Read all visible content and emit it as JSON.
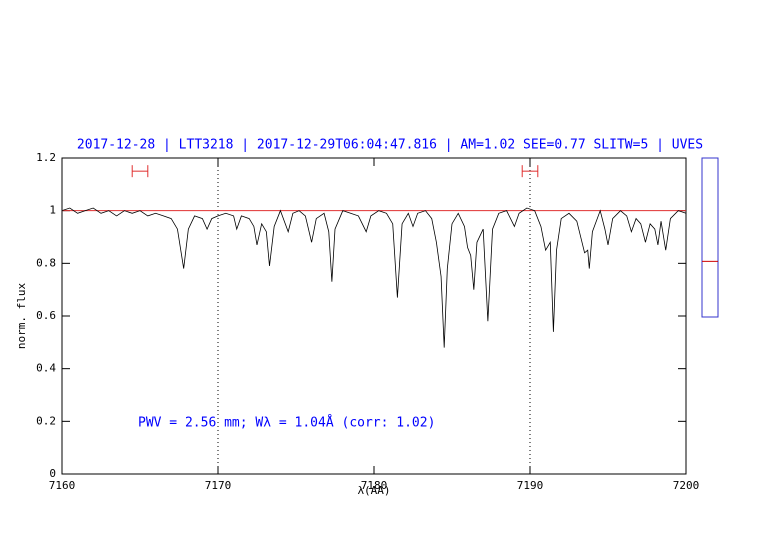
{
  "chart_data": {
    "type": "line",
    "title": "2017-12-28 | LTT3218 | 2017-12-29T06:04:47.816 | AM=1.02 SEE=0.77 SLITW=5 | UVES",
    "xlabel": "λ(AA)",
    "ylabel": "norm. flux",
    "annotation": "PWV = 2.56 mm; Wλ = 1.04Å (corr: 1.02)",
    "xlim": [
      7160,
      7200
    ],
    "ylim": [
      0,
      1.2
    ],
    "xticks": [
      7160,
      7170,
      7180,
      7190,
      7200
    ],
    "yticks": [
      0,
      0.2,
      0.4,
      0.6,
      0.8,
      1,
      1.2
    ],
    "vlines": [
      7170,
      7190
    ],
    "hline": 1,
    "hline_color": "#e03030",
    "intervals": [
      [
        7164.5,
        7165.5
      ],
      [
        7189.5,
        7190.5
      ]
    ],
    "interval_y": 1.15,
    "interval_color": "#e03030",
    "side_panel": {
      "ylim": [
        0.6,
        1.2
      ],
      "marker": 0.81,
      "color": "#3333cc",
      "marker_color": "#cc0000"
    },
    "series": [
      {
        "color": "#000000",
        "x": [
          7160,
          7160.5,
          7161,
          7161.5,
          7162,
          7162.5,
          7163,
          7163.5,
          7164,
          7164.5,
          7165,
          7165.5,
          7166,
          7166.5,
          7167,
          7167.4,
          7167.8,
          7168.1,
          7168.5,
          7169,
          7169.3,
          7169.6,
          7170,
          7170.5,
          7171,
          7171.2,
          7171.5,
          7172,
          7172.3,
          7172.5,
          7172.8,
          7173.1,
          7173.3,
          7173.6,
          7174,
          7174.5,
          7174.8,
          7175.2,
          7175.6,
          7176,
          7176.3,
          7176.8,
          7177.1,
          7177.3,
          7177.5,
          7178,
          7178.5,
          7179,
          7179.5,
          7179.8,
          7180.3,
          7180.8,
          7181.2,
          7181.5,
          7181.8,
          7182.2,
          7182.5,
          7182.8,
          7183.3,
          7183.7,
          7184,
          7184.3,
          7184.5,
          7184.7,
          7185,
          7185.4,
          7185.8,
          7186,
          7186.2,
          7186.4,
          7186.6,
          7187,
          7187.3,
          7187.6,
          7188,
          7188.5,
          7189,
          7189.3,
          7189.8,
          7190.3,
          7190.7,
          7191,
          7191.3,
          7191.5,
          7191.7,
          7192,
          7192.5,
          7193,
          7193.5,
          7193.7,
          7193.8,
          7194,
          7194.5,
          7194.8,
          7195,
          7195.3,
          7195.8,
          7196.2,
          7196.5,
          7196.8,
          7197.1,
          7197.4,
          7197.7,
          7198,
          7198.2,
          7198.4,
          7198.7,
          7199,
          7199.5,
          7200
        ],
        "values": [
          1.0,
          1.01,
          0.99,
          1.0,
          1.01,
          0.99,
          1.0,
          0.98,
          1.0,
          0.99,
          1.0,
          0.98,
          0.99,
          0.98,
          0.97,
          0.93,
          0.78,
          0.93,
          0.98,
          0.97,
          0.93,
          0.97,
          0.98,
          0.99,
          0.98,
          0.93,
          0.98,
          0.97,
          0.94,
          0.87,
          0.95,
          0.92,
          0.79,
          0.94,
          1.0,
          0.92,
          0.99,
          1.0,
          0.98,
          0.88,
          0.97,
          0.99,
          0.92,
          0.73,
          0.93,
          1.0,
          0.99,
          0.98,
          0.92,
          0.98,
          1.0,
          0.99,
          0.95,
          0.67,
          0.95,
          0.99,
          0.94,
          0.99,
          1.0,
          0.97,
          0.88,
          0.75,
          0.48,
          0.78,
          0.95,
          0.99,
          0.94,
          0.86,
          0.83,
          0.7,
          0.88,
          0.93,
          0.58,
          0.93,
          0.99,
          1.0,
          0.94,
          0.99,
          1.01,
          1.0,
          0.94,
          0.85,
          0.88,
          0.54,
          0.85,
          0.97,
          0.99,
          0.96,
          0.84,
          0.85,
          0.78,
          0.92,
          1.0,
          0.93,
          0.87,
          0.97,
          1.0,
          0.98,
          0.92,
          0.97,
          0.95,
          0.88,
          0.95,
          0.93,
          0.87,
          0.96,
          0.85,
          0.97,
          1.0,
          0.99
        ]
      }
    ]
  }
}
